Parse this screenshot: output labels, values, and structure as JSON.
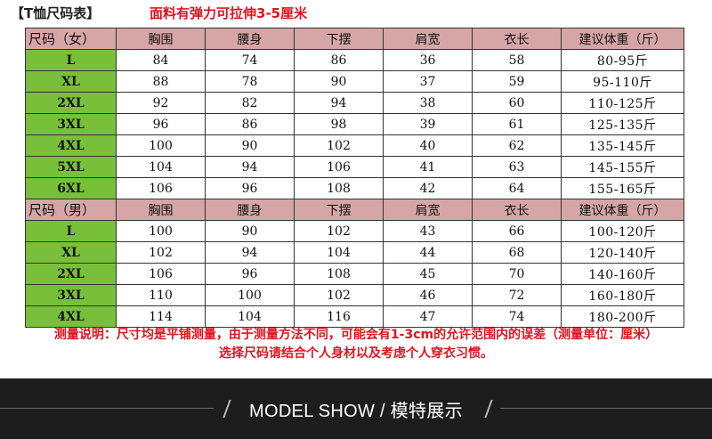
{
  "header": {
    "tag": "【T恤尺码表】",
    "note": "面料有弹力可拉伸3-5厘米"
  },
  "women_table": {
    "columns": [
      "尺码（女）",
      "胸围",
      "腰身",
      "下摆",
      "肩宽",
      "衣长",
      "建议体重（斤）"
    ],
    "rows": [
      [
        "L",
        "84",
        "74",
        "86",
        "36",
        "58",
        "80-95斤"
      ],
      [
        "XL",
        "88",
        "78",
        "90",
        "37",
        "59",
        "95-110斤"
      ],
      [
        "2XL",
        "92",
        "82",
        "94",
        "38",
        "60",
        "110-125斤"
      ],
      [
        "3XL",
        "96",
        "86",
        "98",
        "39",
        "61",
        "125-135斤"
      ],
      [
        "4XL",
        "100",
        "90",
        "102",
        "40",
        "62",
        "135-145斤"
      ],
      [
        "5XL",
        "104",
        "94",
        "106",
        "41",
        "63",
        "145-155斤"
      ],
      [
        "6XL",
        "106",
        "96",
        "108",
        "42",
        "64",
        "155-165斤"
      ]
    ]
  },
  "men_table": {
    "columns": [
      "尺码（男）",
      "胸围",
      "腰身",
      "下摆",
      "肩宽",
      "衣长",
      "建议体重（斤）"
    ],
    "rows": [
      [
        "L",
        "100",
        "90",
        "102",
        "43",
        "66",
        "100-120斤"
      ],
      [
        "XL",
        "102",
        "94",
        "104",
        "44",
        "68",
        "120-140斤"
      ],
      [
        "2XL",
        "106",
        "96",
        "108",
        "45",
        "70",
        "140-160斤"
      ],
      [
        "3XL",
        "110",
        "100",
        "102",
        "46",
        "72",
        "160-180斤"
      ],
      [
        "4XL",
        "114",
        "104",
        "116",
        "47",
        "74",
        "180-200斤"
      ]
    ]
  },
  "footnote": {
    "line1": "测量说明：尺寸均是平铺测量，由于测量方法不同，可能会有1-3cm的允许范围内的误差（测量单位：厘米）",
    "line2": "选择尺码请结合个人身材以及考虑个人穿衣习惯。"
  },
  "banner": {
    "text": "MODEL SHOW / 模特展示"
  },
  "colors": {
    "header_row": "#d6a6a6",
    "size_cell": "#78bf3a",
    "note_red": "#e0141e",
    "banner_bg": "#1d1d1d"
  }
}
